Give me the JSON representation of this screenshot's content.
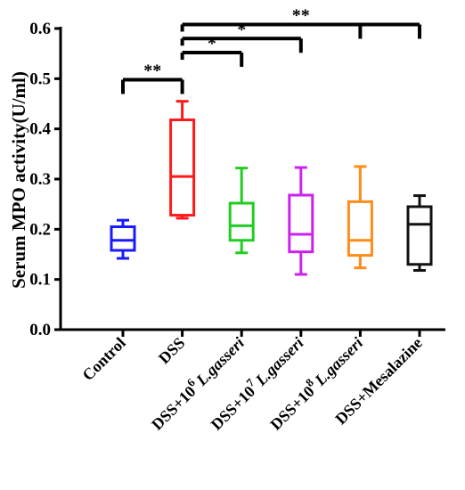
{
  "chart_data": {
    "type": "box",
    "title": "",
    "ylabel": "Serum MPO activity(U/ml)",
    "xlabel": "",
    "ylim": [
      0.0,
      0.6
    ],
    "yticks": [
      "0.0",
      "0.1",
      "0.2",
      "0.3",
      "0.4",
      "0.5",
      "0.6"
    ],
    "grid": false,
    "legend": "none",
    "categories": [
      {
        "prefix": "Control",
        "sup": "",
        "suffix": "",
        "italic": ""
      },
      {
        "prefix": "DSS",
        "sup": "",
        "suffix": "",
        "italic": ""
      },
      {
        "prefix": "DSS+10",
        "sup": "6",
        "suffix": "",
        "italic": "L.gasseri"
      },
      {
        "prefix": "DSS+10",
        "sup": "7",
        "suffix": "",
        "italic": "L.gasseri"
      },
      {
        "prefix": "DSS+10",
        "sup": "8",
        "suffix": "",
        "italic": "L.gasseri"
      },
      {
        "prefix": "DSS+Mesalazine",
        "sup": "",
        "suffix": "",
        "italic": ""
      }
    ],
    "boxes": [
      {
        "min": 0.142,
        "q1": 0.158,
        "median": 0.178,
        "q3": 0.205,
        "max": 0.218,
        "color": "#1a1aff"
      },
      {
        "min": 0.222,
        "q1": 0.228,
        "median": 0.305,
        "q3": 0.418,
        "max": 0.455,
        "color": "#ff1a1a"
      },
      {
        "min": 0.153,
        "q1": 0.178,
        "median": 0.207,
        "q3": 0.252,
        "max": 0.322,
        "color": "#22cc22"
      },
      {
        "min": 0.11,
        "q1": 0.155,
        "median": 0.19,
        "q3": 0.268,
        "max": 0.323,
        "color": "#cc22ee"
      },
      {
        "min": 0.123,
        "q1": 0.148,
        "median": 0.178,
        "q3": 0.255,
        "max": 0.325,
        "color": "#ff8c1a"
      },
      {
        "min": 0.118,
        "q1": 0.13,
        "median": 0.21,
        "q3": 0.245,
        "max": 0.267,
        "color": "#111111"
      }
    ],
    "significance": [
      {
        "from": 0,
        "to": [
          1
        ],
        "y": 0.498,
        "label": "**"
      },
      {
        "from": 1,
        "to": [
          2
        ],
        "y": 0.552,
        "label": "*"
      },
      {
        "from": 1,
        "to": [
          3
        ],
        "y": 0.58,
        "label": "*"
      },
      {
        "from": 1,
        "to": [
          4,
          5
        ],
        "y": 0.608,
        "label": "**"
      }
    ]
  }
}
